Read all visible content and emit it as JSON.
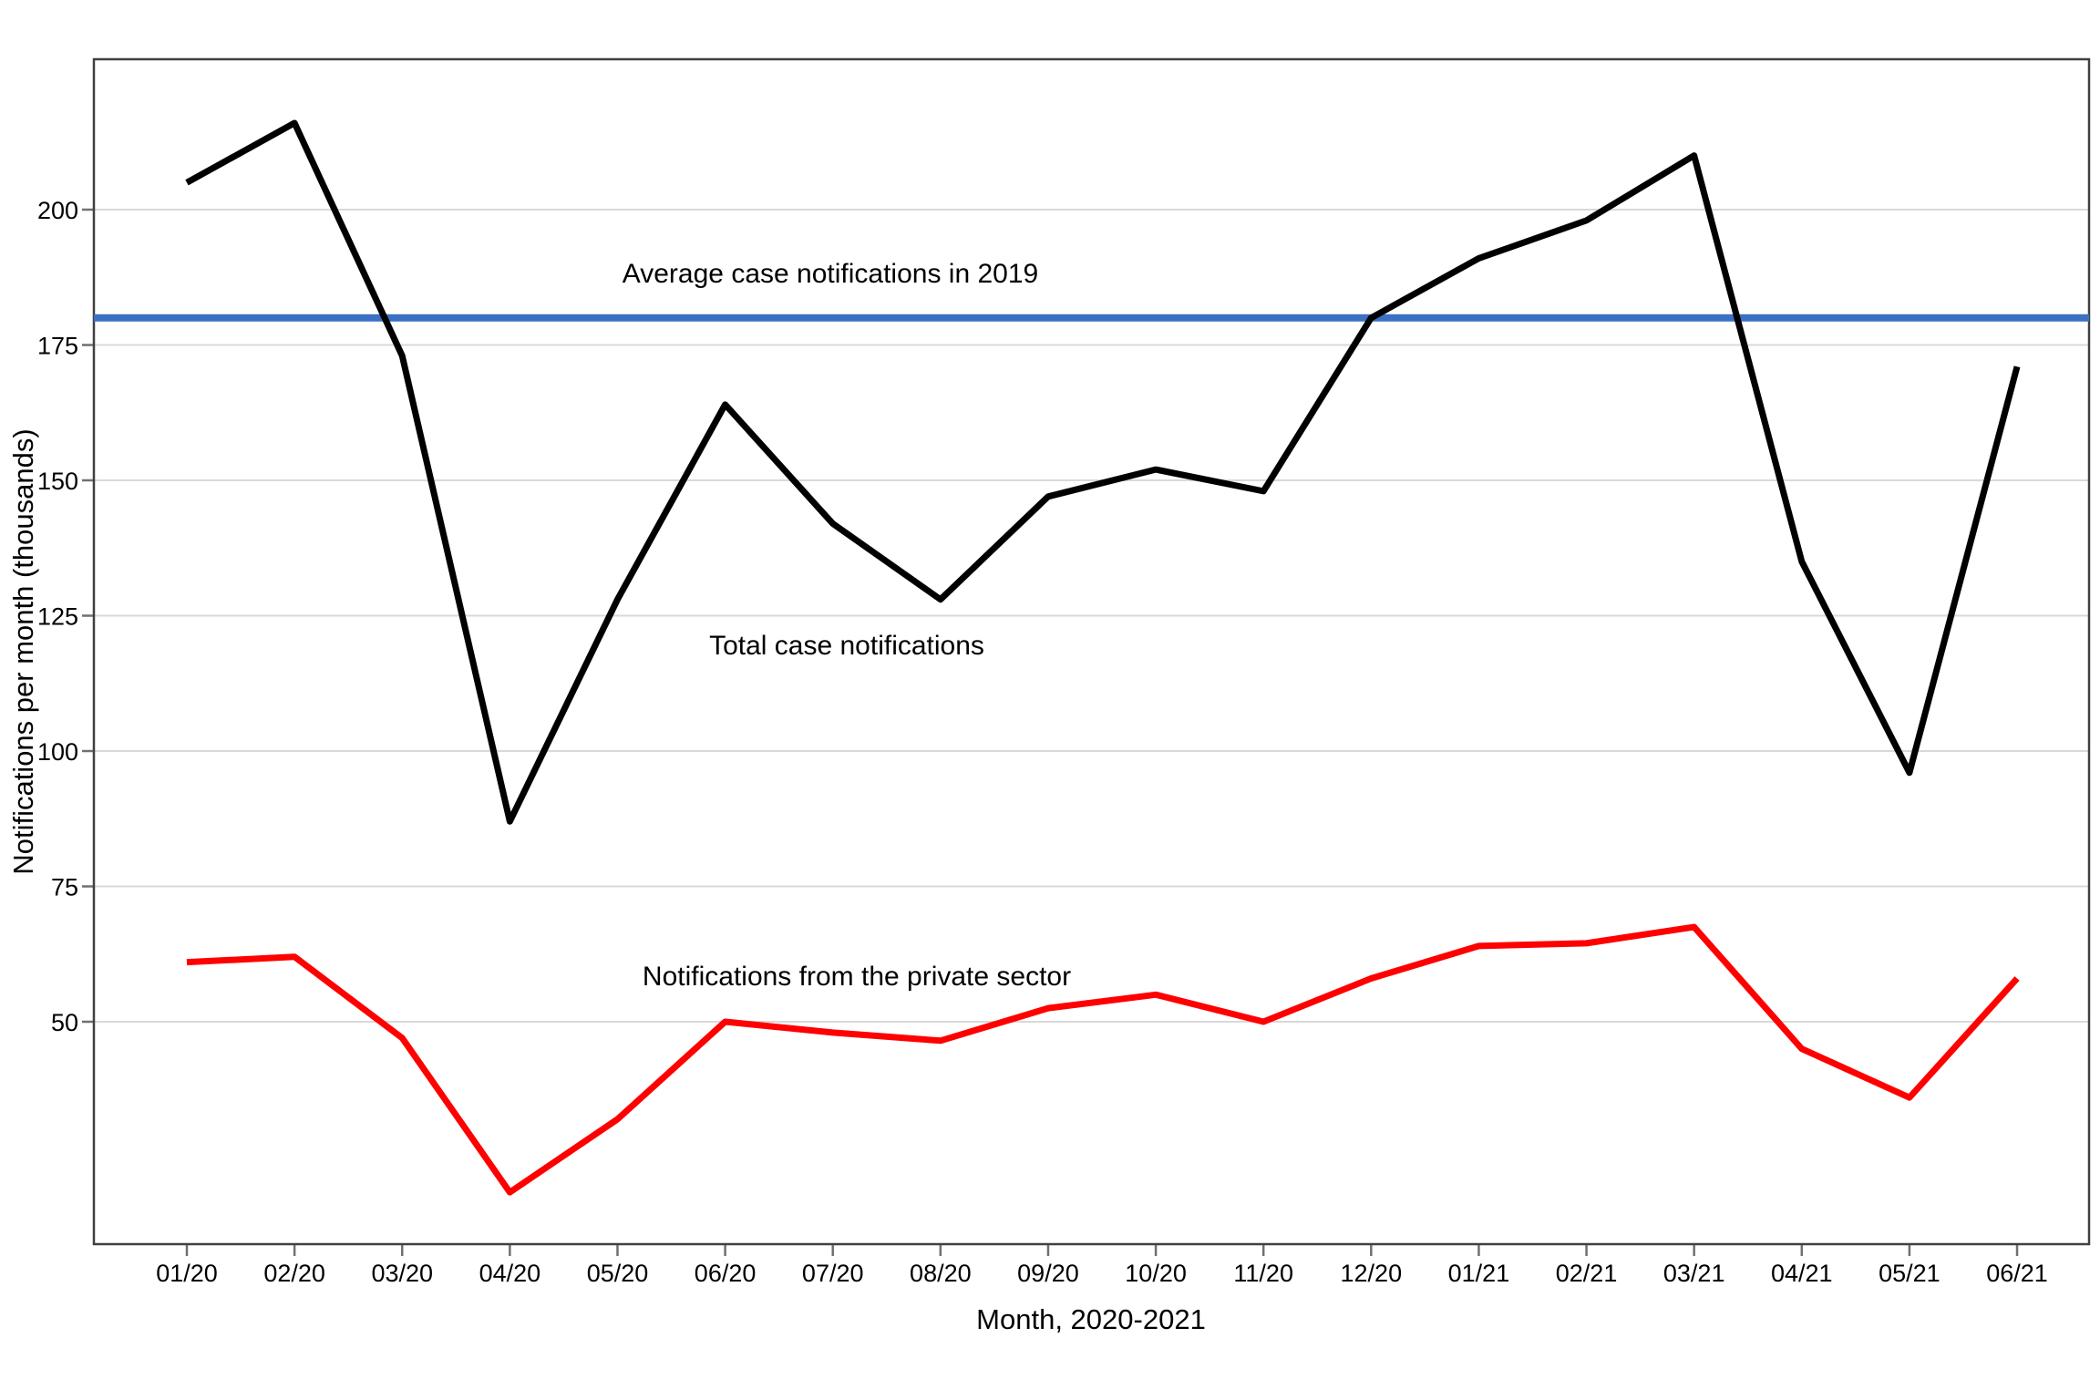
{
  "chart_data": {
    "type": "line",
    "title": "",
    "xlabel": "Month, 2020-2021",
    "ylabel": "Notifications per month (thousands)",
    "x_categories": [
      "01/20",
      "02/20",
      "03/20",
      "04/20",
      "05/20",
      "06/20",
      "07/20",
      "08/20",
      "09/20",
      "10/20",
      "11/20",
      "12/20",
      "01/21",
      "02/21",
      "03/21",
      "04/21",
      "05/21",
      "06/21"
    ],
    "yticks": [
      50,
      75,
      100,
      125,
      150,
      175,
      200
    ],
    "ylim": [
      9,
      228
    ],
    "grid": "horizontal",
    "grid_color": "#D9D9D9",
    "series": [
      {
        "name": "Total case notifications",
        "color": "#000000",
        "values": [
          205,
          216,
          173,
          87,
          128,
          164,
          142,
          128,
          147,
          152,
          148,
          180,
          191,
          198,
          210,
          135,
          96,
          171
        ]
      },
      {
        "name": "Notifications from the private sector",
        "color": "#FF0000",
        "values": [
          61,
          62,
          47,
          18.5,
          32,
          50,
          48,
          46.5,
          52.5,
          55,
          50,
          58,
          64,
          64.5,
          67.5,
          45,
          36,
          58
        ]
      }
    ],
    "reference_line": {
      "label": "Average case notifications in 2019",
      "value": 180,
      "color": "#3B70C3"
    },
    "legend_position": "none",
    "panel_border_color": "#404040",
    "tick_color": "#707070"
  }
}
